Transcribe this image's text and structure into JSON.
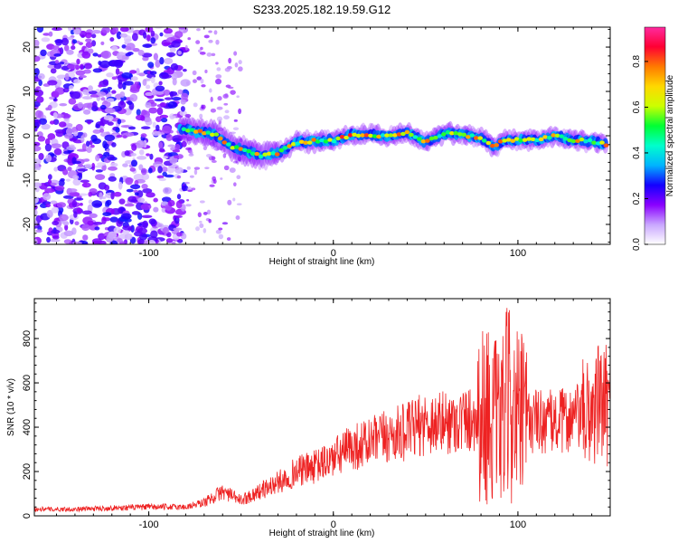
{
  "title": "S233.2025.182.19.59.G12",
  "colors": {
    "snr_line": "#ee2222",
    "frame": "#000000"
  },
  "chart_data": [
    {
      "type": "heatmap",
      "xlabel": "Height of straight line (km)",
      "ylabel": "Frequency (Hz)",
      "xlim": [
        -162,
        150
      ],
      "ylim": [
        -24.5,
        24.5
      ],
      "x_ticks": [
        -100,
        0,
        100
      ],
      "y_ticks": [
        -20,
        -10,
        0,
        10,
        20
      ],
      "colorbar": {
        "label": "Normalized spectral amplitude",
        "range": [
          0,
          0.95
        ],
        "ticks": [
          0.0,
          0.2,
          0.4,
          0.6,
          0.8
        ],
        "tick_labels": [
          "0.0",
          "0.2",
          "0.4",
          "0.6",
          "0.8"
        ],
        "colors": [
          "#ffffff",
          "#c9a6ff",
          "#8a00ff",
          "#1400ff",
          "#00b4ff",
          "#00ffcc",
          "#00ff33",
          "#ccff00",
          "#ffd800",
          "#ff7a00",
          "#ff0033",
          "#ff2aa0"
        ]
      },
      "noise_region": {
        "x_range": [
          -162,
          -80
        ],
        "freq_range": [
          -24.5,
          24.5
        ],
        "amplitude_max": 0.25
      },
      "ridge": {
        "x": [
          -83,
          -75,
          -65,
          -55,
          -45,
          -38,
          -30,
          -20,
          -10,
          0,
          10,
          20,
          30,
          40,
          50,
          60,
          70,
          80,
          88,
          92,
          100,
          110,
          120,
          130,
          140,
          148
        ],
        "freq": [
          1.5,
          1.0,
          0.5,
          -2.5,
          -3.8,
          -4.5,
          -4.0,
          -1.5,
          -1.2,
          -1.0,
          0.2,
          0.3,
          -0.2,
          0.6,
          -1.5,
          0.6,
          0.2,
          -0.5,
          -2.5,
          -1.0,
          -1.0,
          -1.0,
          0.0,
          -1.0,
          -1.2,
          -2.0
        ],
        "peak_amplitude": 0.85
      }
    },
    {
      "type": "line",
      "xlabel": "Height of straight line (km)",
      "ylabel": "SNR (10 * v/v)",
      "xlim": [
        -162,
        150
      ],
      "ylim": [
        0,
        980
      ],
      "x_ticks": [
        -100,
        0,
        100
      ],
      "y_ticks": [
        0,
        200,
        400,
        600,
        800
      ],
      "series": [
        {
          "x": [
            -162,
            -140,
            -120,
            -100,
            -80,
            -70,
            -60,
            -50,
            -40,
            -30,
            -20,
            -10,
            0,
            10,
            20,
            30,
            40,
            50,
            60,
            70,
            80,
            85,
            90,
            95,
            100,
            105,
            110,
            120,
            130,
            140,
            145,
            150
          ],
          "values": [
            30,
            30,
            35,
            40,
            40,
            60,
            110,
            70,
            110,
            150,
            200,
            220,
            260,
            310,
            330,
            360,
            380,
            420,
            420,
            430,
            450,
            470,
            390,
            520,
            440,
            430,
            430,
            420,
            440,
            470,
            520,
            480
          ]
        }
      ]
    }
  ]
}
